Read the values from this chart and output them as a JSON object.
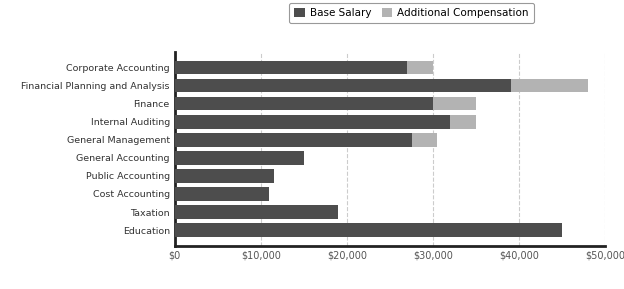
{
  "categories": [
    "Education",
    "Taxation",
    "Cost Accounting",
    "Public Accounting",
    "General Accounting",
    "General Management",
    "Internal Auditing",
    "Finance",
    "Financial Planning and Analysis",
    "Corporate Accounting"
  ],
  "base_salary": [
    45000,
    19000,
    11000,
    11500,
    15000,
    27500,
    32000,
    30000,
    39000,
    27000
  ],
  "additional_compensation": [
    0,
    0,
    0,
    0,
    0,
    3000,
    3000,
    5000,
    9000,
    3000
  ],
  "base_color": "#4d4d4d",
  "additional_color": "#b3b3b3",
  "legend_labels": [
    "Base Salary",
    "Additional Compensation"
  ],
  "xlim": [
    0,
    50000
  ],
  "xtick_values": [
    0,
    10000,
    20000,
    30000,
    40000,
    50000
  ],
  "background_color": "#ffffff",
  "grid_color": "#cccccc",
  "bar_height": 0.75
}
